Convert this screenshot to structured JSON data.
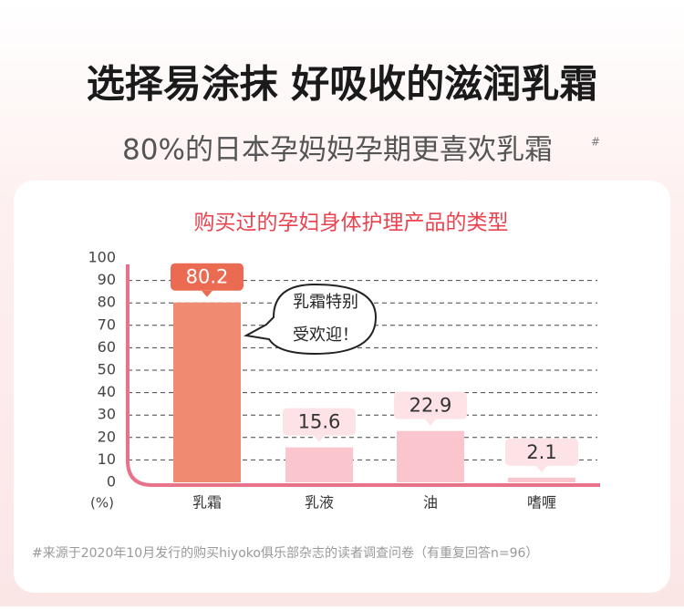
{
  "chart_data": {
    "type": "bar",
    "title": "选择易涂抹 好吸收的滋润乳霜",
    "subtitle": "80%的日本孕妈妈孕期更喜欢乳霜",
    "subtitle_mark": "#",
    "chart_title": "购买过的孕妇身体护理产品的类型",
    "y_label": "(%)",
    "categories": [
      "乳霜",
      "乳液",
      "油",
      "嗜喱"
    ],
    "values": [
      80.2,
      15.6,
      22.9,
      2.1
    ],
    "colors": [
      "#f08a70",
      "#fbc5cd",
      "#fbc5cd",
      "#fbc5cd"
    ],
    "ylim": [
      0,
      100
    ],
    "yticks": [
      0,
      10,
      20,
      30,
      40,
      50,
      60,
      70,
      80,
      90,
      100
    ],
    "grid": true,
    "annotation": [
      "乳霜特别",
      "受欢迎！"
    ],
    "footnote": "#来源于2020年10月发行的购买hiyoko俱乐部杂志的读者调查问卷（有重复回答n=96）"
  }
}
